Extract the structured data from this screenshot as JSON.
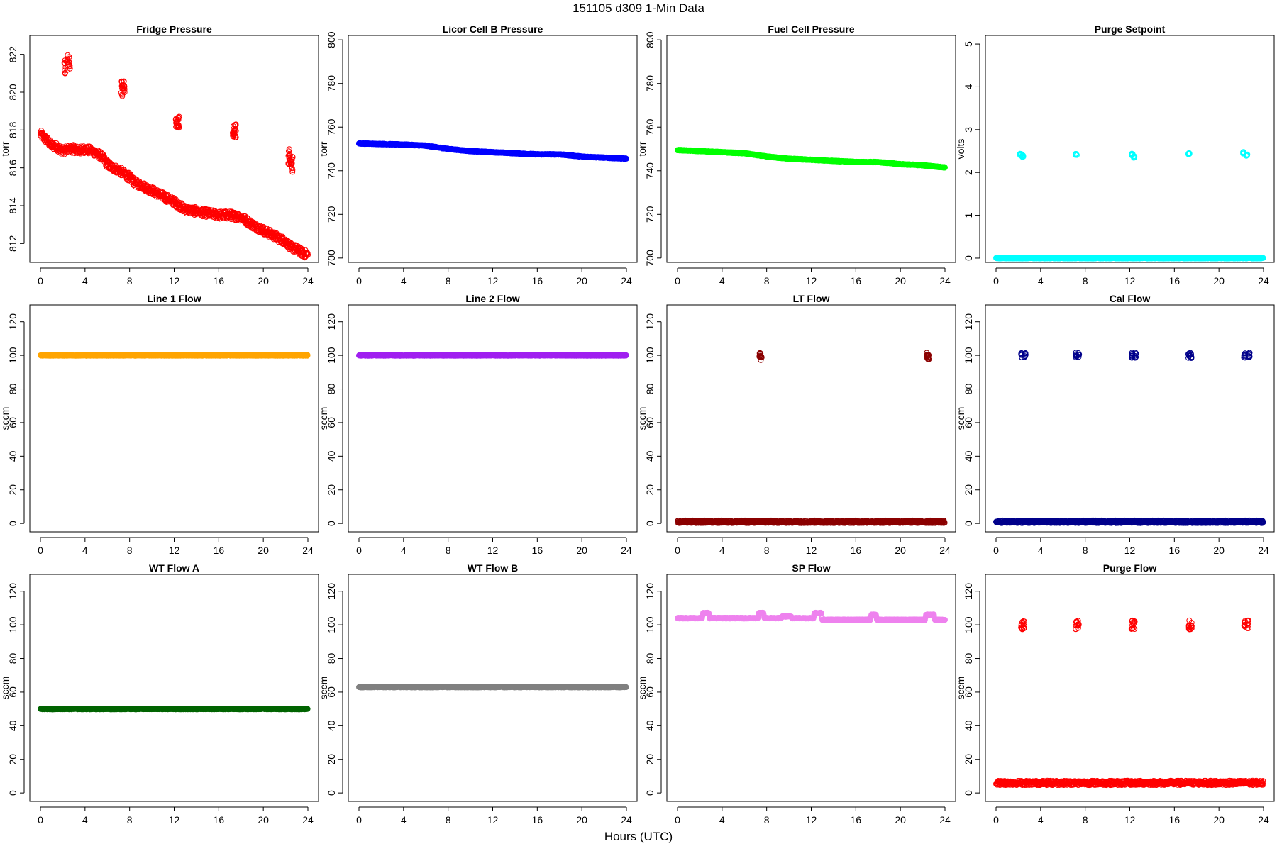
{
  "page": {
    "title": "151105   d309   1-Min Data",
    "xlabel": "Hours (UTC)"
  },
  "chart_data": [
    {
      "type": "scatter",
      "title": "Fridge Pressure",
      "ylabel": "torr",
      "xlim": [
        0,
        24
      ],
      "ylim": [
        811,
        823
      ],
      "xticks": [
        0,
        4,
        8,
        12,
        16,
        20,
        24
      ],
      "yticks": [
        812,
        814,
        816,
        818,
        820,
        822
      ],
      "color": "#ff0000",
      "series": [
        {
          "x": [
            0,
            0.5,
            1,
            1.5,
            2,
            2.5,
            3,
            3.5,
            4,
            4.5,
            5,
            5.5,
            6,
            6.5,
            7,
            8,
            8.5,
            9,
            10,
            11,
            12,
            12.5,
            13,
            14,
            15,
            16,
            17,
            18,
            19,
            20,
            21,
            22,
            22.5,
            23,
            23.5,
            24
          ],
          "y": [
            817.8,
            817.5,
            817.2,
            817.1,
            816.9,
            817.0,
            817.0,
            816.9,
            817.0,
            816.9,
            816.8,
            816.6,
            816.2,
            816.0,
            815.9,
            815.5,
            815.2,
            815.1,
            814.8,
            814.5,
            814.2,
            814.0,
            813.8,
            813.7,
            813.6,
            813.5,
            813.5,
            813.4,
            813.0,
            812.7,
            812.4,
            812.1,
            811.8,
            811.7,
            811.5,
            811.4
          ]
        },
        {
          "x": [
            2.2,
            2.4,
            2.6
          ],
          "y": [
            821.4,
            821.6,
            821.5
          ]
        },
        {
          "x": [
            7.3,
            7.5
          ],
          "y": [
            820.2,
            820.4
          ]
        },
        {
          "x": [
            12.2,
            12.4
          ],
          "y": [
            818.4,
            818.3
          ]
        },
        {
          "x": [
            17.3,
            17.5
          ],
          "y": [
            817.8,
            817.9
          ]
        },
        {
          "x": [
            22.3,
            22.6
          ],
          "y": [
            816.6,
            816.2
          ]
        }
      ]
    },
    {
      "type": "scatter",
      "title": "Licor Cell B Pressure",
      "ylabel": "torr",
      "xlim": [
        0,
        24
      ],
      "ylim": [
        698,
        802
      ],
      "xticks": [
        0,
        4,
        8,
        12,
        16,
        20,
        24
      ],
      "yticks": [
        700,
        720,
        740,
        760,
        780,
        800
      ],
      "color": "#0000ff",
      "series": [
        {
          "x": [
            0,
            4,
            6,
            8,
            10,
            12,
            14,
            16,
            18,
            20,
            22,
            24
          ],
          "y": [
            752.5,
            752.0,
            751.5,
            750.0,
            749.0,
            748.5,
            748.0,
            747.5,
            747.5,
            746.5,
            746.0,
            745.5
          ]
        }
      ]
    },
    {
      "type": "scatter",
      "title": "Fuel Cell Pressure",
      "ylabel": "torr",
      "xlim": [
        0,
        24
      ],
      "ylim": [
        698,
        802
      ],
      "xticks": [
        0,
        4,
        8,
        12,
        16,
        20,
        24
      ],
      "yticks": [
        700,
        720,
        740,
        760,
        780,
        800
      ],
      "color": "#00ff00",
      "series": [
        {
          "x": [
            0,
            4,
            6,
            8,
            10,
            12,
            14,
            16,
            18,
            20,
            22,
            24
          ],
          "y": [
            749.5,
            748.5,
            748.0,
            746.5,
            745.5,
            745.0,
            744.5,
            744.0,
            744.0,
            743.0,
            742.5,
            741.5
          ]
        }
      ]
    },
    {
      "type": "scatter",
      "title": "Purge Setpoint",
      "ylabel": "volts",
      "xlim": [
        0,
        24
      ],
      "ylim": [
        -0.1,
        5.2
      ],
      "xticks": [
        0,
        4,
        8,
        12,
        16,
        20,
        24
      ],
      "yticks": [
        0,
        1,
        2,
        3,
        4,
        5
      ],
      "color": "#00ffff",
      "series": [
        {
          "x": [
            0,
            24
          ],
          "y": [
            0,
            0
          ]
        },
        {
          "x": [
            2.2,
            2.4,
            7.2,
            12.2,
            12.4,
            17.3,
            22.2,
            22.5
          ],
          "y": [
            2.42,
            2.38,
            2.42,
            2.42,
            2.36,
            2.44,
            2.46,
            2.4
          ]
        }
      ]
    },
    {
      "type": "scatter",
      "title": "Line 1 Flow",
      "ylabel": "sccm",
      "xlim": [
        0,
        24
      ],
      "ylim": [
        -5,
        130
      ],
      "xticks": [
        0,
        4,
        8,
        12,
        16,
        20,
        24
      ],
      "yticks": [
        0,
        20,
        40,
        60,
        80,
        100,
        120
      ],
      "color": "#ffa500",
      "series": [
        {
          "x": [
            0,
            24
          ],
          "y": [
            100,
            100
          ]
        }
      ]
    },
    {
      "type": "scatter",
      "title": "Line 2 Flow",
      "ylabel": "sccm",
      "xlim": [
        0,
        24
      ],
      "ylim": [
        -5,
        130
      ],
      "xticks": [
        0,
        4,
        8,
        12,
        16,
        20,
        24
      ],
      "yticks": [
        0,
        20,
        40,
        60,
        80,
        100,
        120
      ],
      "color": "#a020f0",
      "series": [
        {
          "x": [
            0,
            24
          ],
          "y": [
            100,
            100
          ]
        }
      ]
    },
    {
      "type": "scatter",
      "title": "LT Flow",
      "ylabel": "sccm",
      "xlim": [
        0,
        24
      ],
      "ylim": [
        -5,
        130
      ],
      "xticks": [
        0,
        4,
        8,
        12,
        16,
        20,
        24
      ],
      "yticks": [
        0,
        20,
        40,
        60,
        80,
        100,
        120
      ],
      "color": "#8b0000",
      "series": [
        {
          "x": [
            0,
            24
          ],
          "y": [
            1,
            1
          ]
        },
        {
          "x": [
            7.4,
            7.5,
            22.4,
            22.5
          ],
          "y": [
            100,
            98,
            100,
            99
          ]
        }
      ]
    },
    {
      "type": "scatter",
      "title": "Cal Flow",
      "ylabel": "sccm",
      "xlim": [
        0,
        24
      ],
      "ylim": [
        -5,
        130
      ],
      "xticks": [
        0,
        4,
        8,
        12,
        16,
        20,
        24
      ],
      "yticks": [
        0,
        20,
        40,
        60,
        80,
        100,
        120
      ],
      "color": "#00008b",
      "series": [
        {
          "x": [
            0,
            24
          ],
          "y": [
            1,
            1
          ]
        },
        {
          "x": [
            2.3,
            2.6,
            7.2,
            7.4,
            12.2,
            12.5,
            17.3,
            17.5,
            22.3,
            22.7
          ],
          "y": [
            100,
            100,
            100,
            100,
            100,
            100,
            100,
            100,
            100,
            100
          ]
        }
      ]
    },
    {
      "type": "scatter",
      "title": "WT Flow A",
      "ylabel": "sccm",
      "xlim": [
        0,
        24
      ],
      "ylim": [
        -5,
        130
      ],
      "xticks": [
        0,
        4,
        8,
        12,
        16,
        20,
        24
      ],
      "yticks": [
        0,
        20,
        40,
        60,
        80,
        100,
        120
      ],
      "color": "#006400",
      "series": [
        {
          "x": [
            0,
            24
          ],
          "y": [
            50,
            50
          ]
        }
      ]
    },
    {
      "type": "scatter",
      "title": "WT Flow B",
      "ylabel": "sccm",
      "xlim": [
        0,
        24
      ],
      "ylim": [
        -5,
        130
      ],
      "xticks": [
        0,
        4,
        8,
        12,
        16,
        20,
        24
      ],
      "yticks": [
        0,
        20,
        40,
        60,
        80,
        100,
        120
      ],
      "color": "#808080",
      "series": [
        {
          "x": [
            0,
            24
          ],
          "y": [
            63,
            63
          ]
        }
      ]
    },
    {
      "type": "scatter",
      "title": "SP Flow",
      "ylabel": "sccm",
      "xlim": [
        0,
        24
      ],
      "ylim": [
        -5,
        130
      ],
      "xticks": [
        0,
        4,
        8,
        12,
        16,
        20,
        24
      ],
      "yticks": [
        0,
        20,
        40,
        60,
        80,
        100,
        120
      ],
      "color": "#ee82ee",
      "series": [
        {
          "x": [
            0,
            2.2,
            2.3,
            2.8,
            2.9,
            7.2,
            7.3,
            7.7,
            7.8,
            9.3,
            9.4,
            10.2,
            10.3,
            12.2,
            12.3,
            12.9,
            13,
            17.3,
            17.4,
            17.8,
            17.9,
            22.2,
            22.3,
            23,
            23.1,
            24
          ],
          "y": [
            104,
            104,
            107,
            107,
            104,
            104,
            107,
            107,
            104,
            104,
            105,
            105,
            104,
            104,
            107,
            107,
            103,
            103,
            106,
            106,
            103,
            103,
            106,
            106,
            103,
            103
          ]
        }
      ]
    },
    {
      "type": "scatter",
      "title": "Purge Flow",
      "ylabel": "sccm",
      "xlim": [
        0,
        24
      ],
      "ylim": [
        -5,
        130
      ],
      "xticks": [
        0,
        4,
        8,
        12,
        16,
        20,
        24
      ],
      "yticks": [
        0,
        20,
        40,
        60,
        80,
        100,
        120
      ],
      "color": "#ff0000",
      "series": [
        {
          "x": [
            0,
            24
          ],
          "y": [
            6,
            6
          ]
        },
        {
          "x": [
            2.3,
            2.5,
            7.2,
            7.4,
            12.2,
            12.4,
            17.3,
            17.5,
            22.3,
            22.6
          ],
          "y": [
            100,
            100,
            100,
            100,
            100,
            100,
            100,
            100,
            100,
            100
          ]
        }
      ]
    }
  ]
}
